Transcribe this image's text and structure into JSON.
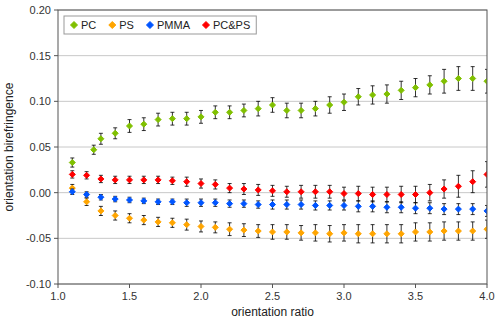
{
  "chart_data": {
    "type": "scatter",
    "xlabel": "orientation ratio",
    "ylabel": "orientation birefringence",
    "xlim": [
      1.0,
      4.0
    ],
    "ylim": [
      -0.1,
      0.2
    ],
    "xticks": [
      {
        "value": 1.0,
        "label": "1.0"
      },
      1.5,
      {
        "value": 2.0,
        "label": "2.0"
      },
      2.5,
      {
        "value": 3.0,
        "label": "3.0"
      },
      3.5,
      {
        "value": 4.0,
        "label": "4.0"
      }
    ],
    "yticks": [
      {
        "value": -0.1,
        "label": "-0.10"
      },
      -0.05,
      {
        "value": 0.0,
        "label": "0.00"
      },
      0.05,
      {
        "value": 0.1,
        "label": "0.10"
      },
      0.15,
      {
        "value": 0.2,
        "label": "0.20"
      }
    ],
    "grid": "y",
    "legend": "upper left",
    "marker": "diamond",
    "series": [
      {
        "name": "PC",
        "color": "#80c000",
        "x": [
          1.1,
          1.25,
          1.3,
          1.4,
          1.5,
          1.6,
          1.7,
          1.8,
          1.9,
          2.0,
          2.1,
          2.2,
          2.3,
          2.4,
          2.5,
          2.6,
          2.7,
          2.8,
          2.9,
          3.0,
          3.1,
          3.2,
          3.3,
          3.4,
          3.5,
          3.6,
          3.7,
          3.8,
          3.9,
          4.0
        ],
        "values": [
          0.033,
          0.047,
          0.059,
          0.065,
          0.073,
          0.075,
          0.08,
          0.081,
          0.081,
          0.083,
          0.088,
          0.088,
          0.09,
          0.092,
          0.096,
          0.09,
          0.09,
          0.092,
          0.096,
          0.099,
          0.105,
          0.107,
          0.108,
          0.112,
          0.115,
          0.118,
          0.122,
          0.125,
          0.125,
          0.122
        ],
        "yerr": [
          0.005,
          0.005,
          0.006,
          0.006,
          0.007,
          0.007,
          0.007,
          0.007,
          0.007,
          0.007,
          0.007,
          0.007,
          0.007,
          0.008,
          0.008,
          0.008,
          0.008,
          0.008,
          0.009,
          0.009,
          0.009,
          0.01,
          0.01,
          0.01,
          0.01,
          0.01,
          0.013,
          0.013,
          0.013,
          0.013
        ]
      },
      {
        "name": "PS",
        "color": "#ffa500",
        "x": [
          1.1,
          1.2,
          1.3,
          1.4,
          1.5,
          1.6,
          1.7,
          1.8,
          1.9,
          2.0,
          2.1,
          2.2,
          2.3,
          2.4,
          2.5,
          2.6,
          2.7,
          2.8,
          2.9,
          3.0,
          3.1,
          3.2,
          3.3,
          3.4,
          3.5,
          3.6,
          3.7,
          3.8,
          3.9,
          4.0
        ],
        "values": [
          0.005,
          -0.01,
          -0.02,
          -0.025,
          -0.028,
          -0.03,
          -0.032,
          -0.033,
          -0.035,
          -0.037,
          -0.038,
          -0.04,
          -0.041,
          -0.042,
          -0.043,
          -0.043,
          -0.044,
          -0.044,
          -0.045,
          -0.044,
          -0.045,
          -0.045,
          -0.045,
          -0.045,
          -0.043,
          -0.043,
          -0.042,
          -0.042,
          -0.042,
          -0.04
        ],
        "yerr": [
          0.004,
          0.004,
          0.005,
          0.005,
          0.005,
          0.005,
          0.005,
          0.005,
          0.006,
          0.006,
          0.006,
          0.007,
          0.007,
          0.007,
          0.008,
          0.008,
          0.008,
          0.009,
          0.009,
          0.009,
          0.01,
          0.01,
          0.01,
          0.01,
          0.01,
          0.01,
          0.01,
          0.01,
          0.01,
          0.01
        ]
      },
      {
        "name": "PMMA",
        "color": "#0055ff",
        "x": [
          1.1,
          1.2,
          1.3,
          1.4,
          1.5,
          1.6,
          1.7,
          1.8,
          1.9,
          2.0,
          2.1,
          2.2,
          2.3,
          2.4,
          2.5,
          2.6,
          2.7,
          2.8,
          2.9,
          3.0,
          3.1,
          3.2,
          3.3,
          3.4,
          3.5,
          3.6,
          3.7,
          3.8,
          3.9,
          4.0
        ],
        "values": [
          0.001,
          -0.002,
          -0.005,
          -0.007,
          -0.008,
          -0.009,
          -0.01,
          -0.01,
          -0.011,
          -0.011,
          -0.011,
          -0.012,
          -0.012,
          -0.013,
          -0.013,
          -0.013,
          -0.013,
          -0.014,
          -0.014,
          -0.014,
          -0.015,
          -0.015,
          -0.016,
          -0.016,
          -0.017,
          -0.017,
          -0.018,
          -0.018,
          -0.018,
          -0.02
        ],
        "yerr": [
          0.003,
          0.003,
          0.003,
          0.003,
          0.003,
          0.003,
          0.003,
          0.003,
          0.004,
          0.004,
          0.004,
          0.004,
          0.004,
          0.004,
          0.005,
          0.005,
          0.005,
          0.005,
          0.005,
          0.005,
          0.006,
          0.006,
          0.006,
          0.006,
          0.006,
          0.006,
          0.006,
          0.006,
          0.006,
          0.006
        ]
      },
      {
        "name": "PC&PS",
        "color": "#ff0000",
        "x": [
          1.1,
          1.2,
          1.3,
          1.4,
          1.5,
          1.6,
          1.7,
          1.8,
          1.9,
          2.0,
          2.1,
          2.2,
          2.3,
          2.4,
          2.5,
          2.6,
          2.7,
          2.8,
          2.9,
          3.0,
          3.1,
          3.2,
          3.3,
          3.4,
          3.5,
          3.6,
          3.7,
          3.8,
          3.9,
          4.0
        ],
        "values": [
          0.02,
          0.019,
          0.015,
          0.014,
          0.014,
          0.014,
          0.014,
          0.013,
          0.012,
          0.01,
          0.009,
          0.005,
          0.004,
          0.003,
          0.002,
          0.001,
          0.001,
          0.001,
          0.001,
          -0.001,
          -0.001,
          -0.002,
          -0.002,
          -0.002,
          -0.002,
          0.0,
          0.004,
          0.007,
          0.012,
          0.02
        ],
        "yerr": [
          0.004,
          0.004,
          0.004,
          0.004,
          0.004,
          0.004,
          0.004,
          0.004,
          0.005,
          0.005,
          0.005,
          0.005,
          0.006,
          0.006,
          0.006,
          0.006,
          0.007,
          0.007,
          0.007,
          0.007,
          0.008,
          0.008,
          0.008,
          0.009,
          0.009,
          0.009,
          0.01,
          0.012,
          0.012,
          0.014
        ]
      }
    ]
  }
}
